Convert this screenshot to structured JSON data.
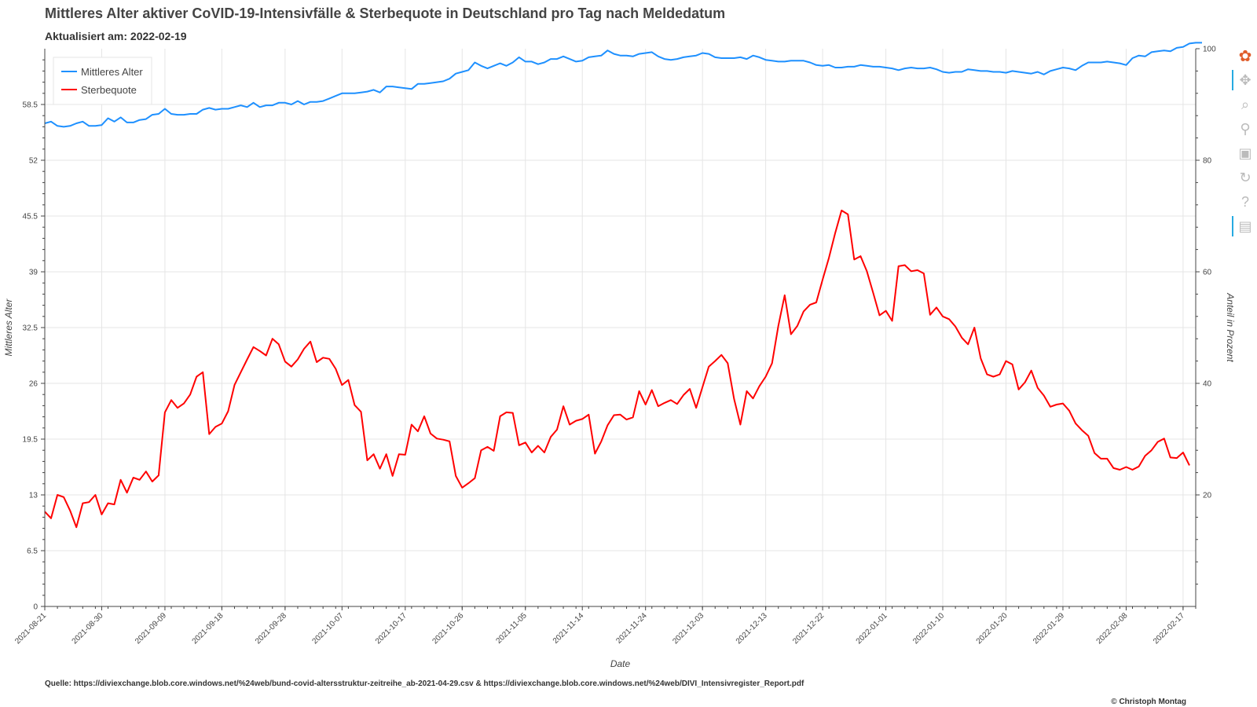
{
  "header": {
    "title": "Mittleres Alter aktiver CoVID-19-Intensivfälle & Sterbequote in Deutschland pro Tag nach Meldedatum",
    "subtitle": "Aktualisiert am: 2022-02-19"
  },
  "footer": {
    "source": "Quelle: https://diviexchange.blob.core.windows.net/%24web/bund-covid-altersstruktur-zeitreihe_ab-2021-04-29.csv & https://diviexchange.blob.core.windows.net/%24web/DIVI_Intensivregister_Report.pdf",
    "copyright": "© Christoph Montag"
  },
  "toolbar": {
    "tools": [
      {
        "name": "bokeh-logo-icon",
        "glyph": "✿",
        "active": false
      },
      {
        "name": "pan-tool-icon",
        "glyph": "✥",
        "active": true
      },
      {
        "name": "box-zoom-tool-icon",
        "glyph": "⌕",
        "active": false
      },
      {
        "name": "wheel-zoom-tool-icon",
        "glyph": "⚲",
        "active": false
      },
      {
        "name": "save-tool-icon",
        "glyph": "▣",
        "active": false
      },
      {
        "name": "reset-tool-icon",
        "glyph": "↻",
        "active": false
      },
      {
        "name": "help-tool-icon",
        "glyph": "?",
        "active": false
      },
      {
        "name": "hover-tool-icon",
        "glyph": "▤",
        "active": true
      }
    ]
  },
  "chart_data": {
    "type": "line",
    "xlabel": "Date",
    "ylabel": "Mittleres Alter",
    "y2label": "Anteil in Prozent",
    "x_range": [
      "2021-08-21",
      "2022-02-19"
    ],
    "ylim": [
      0,
      65
    ],
    "y2lim": [
      0,
      100
    ],
    "y_ticks": [
      0,
      6.5,
      13,
      19.5,
      26,
      32.5,
      39,
      45.5,
      52,
      58.5
    ],
    "y_tick_labels": [
      "0",
      "6.5",
      "13",
      "19.5",
      "26",
      "32.5",
      "39",
      "45.5",
      "52",
      "58.5"
    ],
    "y2_ticks": [
      20,
      40,
      60,
      80,
      100
    ],
    "y2_tick_labels": [
      "20",
      "40",
      "60",
      "80",
      "100"
    ],
    "x_ticks": [
      "2021-08-21",
      "2021-08-30",
      "2021-09-09",
      "2021-09-18",
      "2021-09-28",
      "2021-10-07",
      "2021-10-17",
      "2021-10-26",
      "2021-11-05",
      "2021-11-14",
      "2021-11-24",
      "2021-12-03",
      "2021-12-13",
      "2021-12-22",
      "2022-01-01",
      "2022-01-10",
      "2022-01-20",
      "2022-01-29",
      "2022-02-08",
      "2022-02-17"
    ],
    "grid": true,
    "legend_position": "top-left",
    "series": [
      {
        "name": "Mittleres Alter",
        "axis": "left",
        "color": "#1e90ff",
        "start": "2021-08-21",
        "step_days": 1,
        "values": [
          56.3,
          56.5,
          56.0,
          55.9,
          56.0,
          56.3,
          56.5,
          56.0,
          56.0,
          56.1,
          56.9,
          56.5,
          57.0,
          56.4,
          56.4,
          56.7,
          56.8,
          57.3,
          57.4,
          58.0,
          57.4,
          57.3,
          57.3,
          57.4,
          57.4,
          57.9,
          58.1,
          57.9,
          58.0,
          58.0,
          58.2,
          58.4,
          58.2,
          58.7,
          58.2,
          58.4,
          58.4,
          58.7,
          58.7,
          58.5,
          58.9,
          58.5,
          58.8,
          58.8,
          58.9,
          59.2,
          59.5,
          59.8,
          59.8,
          59.8,
          59.9,
          60.0,
          60.2,
          59.9,
          60.6,
          60.6,
          60.5,
          60.4,
          60.3,
          60.9,
          60.9,
          61.0,
          61.1,
          61.2,
          61.5,
          62.1,
          62.3,
          62.5,
          63.4,
          63.0,
          62.7,
          63.0,
          63.3,
          63.0,
          63.4,
          64.0,
          63.5,
          63.5,
          63.2,
          63.4,
          63.8,
          63.8,
          64.1,
          63.8,
          63.5,
          63.6,
          64.0,
          64.1,
          64.2,
          64.8,
          64.4,
          64.2,
          64.2,
          64.1,
          64.4,
          64.5,
          64.6,
          64.1,
          63.8,
          63.7,
          63.8,
          64.0,
          64.1,
          64.2,
          64.5,
          64.4,
          64.0,
          63.9,
          63.9,
          63.9,
          64.0,
          63.8,
          64.2,
          64.0,
          63.7,
          63.6,
          63.5,
          63.5,
          63.6,
          63.6,
          63.6,
          63.4,
          63.1,
          63.0,
          63.1,
          62.8,
          62.8,
          62.9,
          62.9,
          63.1,
          63.0,
          62.9,
          62.9,
          62.8,
          62.7,
          62.5,
          62.7,
          62.8,
          62.7,
          62.7,
          62.8,
          62.6,
          62.3,
          62.2,
          62.3,
          62.3,
          62.6,
          62.5,
          62.4,
          62.4,
          62.3,
          62.3,
          62.2,
          62.4,
          62.3,
          62.2,
          62.1,
          62.3,
          62.0,
          62.4,
          62.6,
          62.8,
          62.7,
          62.5,
          63.0,
          63.4,
          63.4,
          63.4,
          63.5,
          63.4,
          63.3,
          63.1,
          63.9,
          64.2,
          64.1,
          64.6,
          64.7,
          64.8,
          64.7,
          65.1,
          65.2,
          65.6,
          65.7,
          65.7
        ]
      },
      {
        "name": "Sterbequote",
        "axis": "right",
        "color": "#ff0000",
        "start": "2021-08-21",
        "step_days": 1,
        "values": [
          17.0,
          15.8,
          20.0,
          19.6,
          17.2,
          14.2,
          18.5,
          18.7,
          20.0,
          16.5,
          18.5,
          18.3,
          22.7,
          20.4,
          23.1,
          22.7,
          24.2,
          22.4,
          23.5,
          34.8,
          37.0,
          35.6,
          36.4,
          38.0,
          41.2,
          42.0,
          30.9,
          32.2,
          32.8,
          35.0,
          39.7,
          42.0,
          44.3,
          46.5,
          45.8,
          45.0,
          48.0,
          47.0,
          43.9,
          43.0,
          44.3,
          46.2,
          47.5,
          43.8,
          44.6,
          44.4,
          42.6,
          39.7,
          40.6,
          36.1,
          34.9,
          26.2,
          27.3,
          24.7,
          27.3,
          23.4,
          27.3,
          27.2,
          32.6,
          31.4,
          34.1,
          31.0,
          30.1,
          29.9,
          29.6,
          23.4,
          21.3,
          22.1,
          23.0,
          28.0,
          28.6,
          27.9,
          34.1,
          34.8,
          34.7,
          28.9,
          29.4,
          27.6,
          28.8,
          27.6,
          30.4,
          31.7,
          35.9,
          32.6,
          33.3,
          33.6,
          34.4,
          27.4,
          29.6,
          32.5,
          34.3,
          34.4,
          33.5,
          33.9,
          38.6,
          36.2,
          38.8,
          35.9,
          36.5,
          37.0,
          36.3,
          37.9,
          39.0,
          35.6,
          39.3,
          43.0,
          44.0,
          45.1,
          43.6,
          37.2,
          32.6,
          38.6,
          37.3,
          39.5,
          41.2,
          43.6,
          50.3,
          55.8,
          48.8,
          50.3,
          52.9,
          54.1,
          54.5,
          58.6,
          62.5,
          67.0,
          71.0,
          70.3,
          62.2,
          62.8,
          60.1,
          56.2,
          52.2,
          53.0,
          51.2,
          61.0,
          61.2,
          60.1,
          60.3,
          59.7,
          52.3,
          53.6,
          52.0,
          51.5,
          50.2,
          48.2,
          47.0,
          50.0,
          44.5,
          41.6,
          41.2,
          41.6,
          44.0,
          43.4,
          38.9,
          40.2,
          42.3,
          39.2,
          37.8,
          35.8,
          36.2,
          36.4,
          35.1,
          32.8,
          31.6,
          30.6,
          27.5,
          26.5,
          26.5,
          24.8,
          24.5,
          25.0,
          24.5,
          25.1,
          27.0,
          28.0,
          29.5,
          30.1,
          26.7,
          26.6,
          27.6,
          25.3
        ]
      }
    ]
  }
}
